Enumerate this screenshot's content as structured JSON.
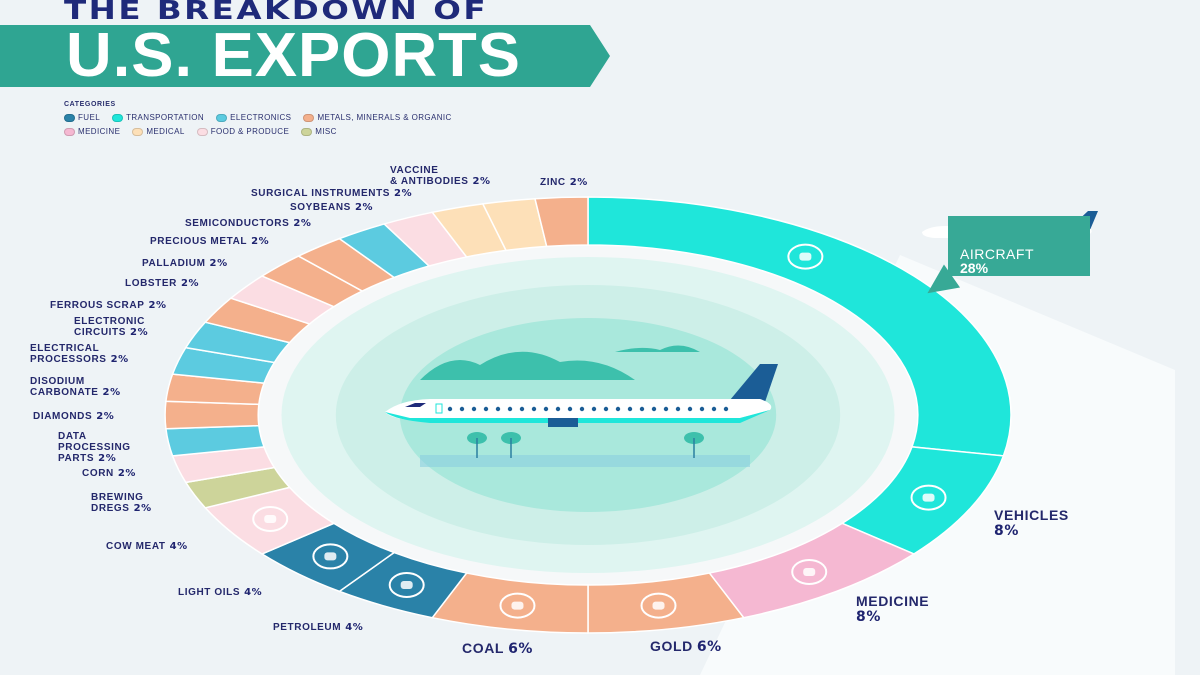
{
  "header": {
    "kicker": "THE BREAKDOWN OF",
    "title": "U.S. EXPORTS"
  },
  "legend": {
    "title": "CATEGORIES",
    "items": [
      {
        "label": "FUEL",
        "color": "#2a82a8"
      },
      {
        "label": "TRANSPORTATION",
        "color": "#1fe6da"
      },
      {
        "label": "ELECTRONICS",
        "color": "#5ccbe0"
      },
      {
        "label": "METALS, MINERALS & ORGANIC",
        "color": "#f4b08c"
      },
      {
        "label": "MEDICINE",
        "color": "#f5b8d2"
      },
      {
        "label": "MEDICAL",
        "color": "#fde0b8"
      },
      {
        "label": "FOOD & PRODUCE",
        "color": "#fbdde3"
      },
      {
        "label": "MISC",
        "color": "#cdd49a"
      }
    ]
  },
  "callout": {
    "label": "AIRCRAFT",
    "value": "28%"
  },
  "chart_data": {
    "type": "pie",
    "variant": "donut",
    "title": "U.S. EXPORTS",
    "slices": [
      {
        "lines": [
          "AIRCRAFT"
        ],
        "value": 28,
        "pct": "28%",
        "category": "TRANSPORTATION",
        "icon": "airplane-icon"
      },
      {
        "lines": [
          "VEHICLES"
        ],
        "value": 8,
        "pct": "8%",
        "category": "TRANSPORTATION",
        "icon": "wheel-icon"
      },
      {
        "lines": [
          "MEDICINE"
        ],
        "value": 8,
        "pct": "8%",
        "category": "MEDICINE",
        "icon": "pill-icon"
      },
      {
        "lines": [
          "GOLD"
        ],
        "value": 6,
        "pct": "6%",
        "category": "METALS, MINERALS & ORGANIC",
        "icon": "gold-bar-icon"
      },
      {
        "lines": [
          "COAL"
        ],
        "value": 6,
        "pct": "6%",
        "category": "METALS, MINERALS & ORGANIC",
        "icon": "coal-cart-icon"
      },
      {
        "lines": [
          "PETROLEUM"
        ],
        "value": 4,
        "pct": "4%",
        "category": "FUEL",
        "icon": "oil-drop-icon"
      },
      {
        "lines": [
          "LIGHT OILS"
        ],
        "value": 4,
        "pct": "4%",
        "category": "FUEL",
        "icon": "jerry-can-icon"
      },
      {
        "lines": [
          "COW MEAT"
        ],
        "value": 4,
        "pct": "4%",
        "category": "FOOD & PRODUCE",
        "icon": "cow-icon"
      },
      {
        "lines": [
          "BREWING",
          "DREGS"
        ],
        "value": 2,
        "pct": "2%",
        "category": "MISC"
      },
      {
        "lines": [
          "CORN"
        ],
        "value": 2,
        "pct": "2%",
        "category": "FOOD & PRODUCE"
      },
      {
        "lines": [
          "DATA",
          "PROCESSING",
          "PARTS"
        ],
        "value": 2,
        "pct": "2%",
        "category": "ELECTRONICS"
      },
      {
        "lines": [
          "DIAMONDS"
        ],
        "value": 2,
        "pct": "2%",
        "category": "METALS, MINERALS & ORGANIC"
      },
      {
        "lines": [
          "DISODIUM",
          "CARBONATE"
        ],
        "value": 2,
        "pct": "2%",
        "category": "METALS, MINERALS & ORGANIC"
      },
      {
        "lines": [
          "ELECTRICAL",
          "PROCESSORS"
        ],
        "value": 2,
        "pct": "2%",
        "category": "ELECTRONICS"
      },
      {
        "lines": [
          "ELECTRONIC",
          "CIRCUITS"
        ],
        "value": 2,
        "pct": "2%",
        "category": "ELECTRONICS"
      },
      {
        "lines": [
          "FERROUS SCRAP"
        ],
        "value": 2,
        "pct": "2%",
        "category": "METALS, MINERALS & ORGANIC"
      },
      {
        "lines": [
          "LOBSTER"
        ],
        "value": 2,
        "pct": "2%",
        "category": "FOOD & PRODUCE"
      },
      {
        "lines": [
          "PALLADIUM"
        ],
        "value": 2,
        "pct": "2%",
        "category": "METALS, MINERALS & ORGANIC"
      },
      {
        "lines": [
          "PRECIOUS METAL"
        ],
        "value": 2,
        "pct": "2%",
        "category": "METALS, MINERALS & ORGANIC"
      },
      {
        "lines": [
          "SEMICONDUCTORS"
        ],
        "value": 2,
        "pct": "2%",
        "category": "ELECTRONICS"
      },
      {
        "lines": [
          "SOYBEANS"
        ],
        "value": 2,
        "pct": "2%",
        "category": "FOOD & PRODUCE"
      },
      {
        "lines": [
          "SURGICAL INSTRUMENTS"
        ],
        "value": 2,
        "pct": "2%",
        "category": "MEDICAL"
      },
      {
        "lines": [
          "VACCINE",
          "& ANTIBODIES"
        ],
        "value": 2,
        "pct": "2%",
        "category": "MEDICAL"
      },
      {
        "lines": [
          "ZINC"
        ],
        "value": 2,
        "pct": "2%",
        "category": "METALS, MINERALS & ORGANIC"
      }
    ]
  }
}
